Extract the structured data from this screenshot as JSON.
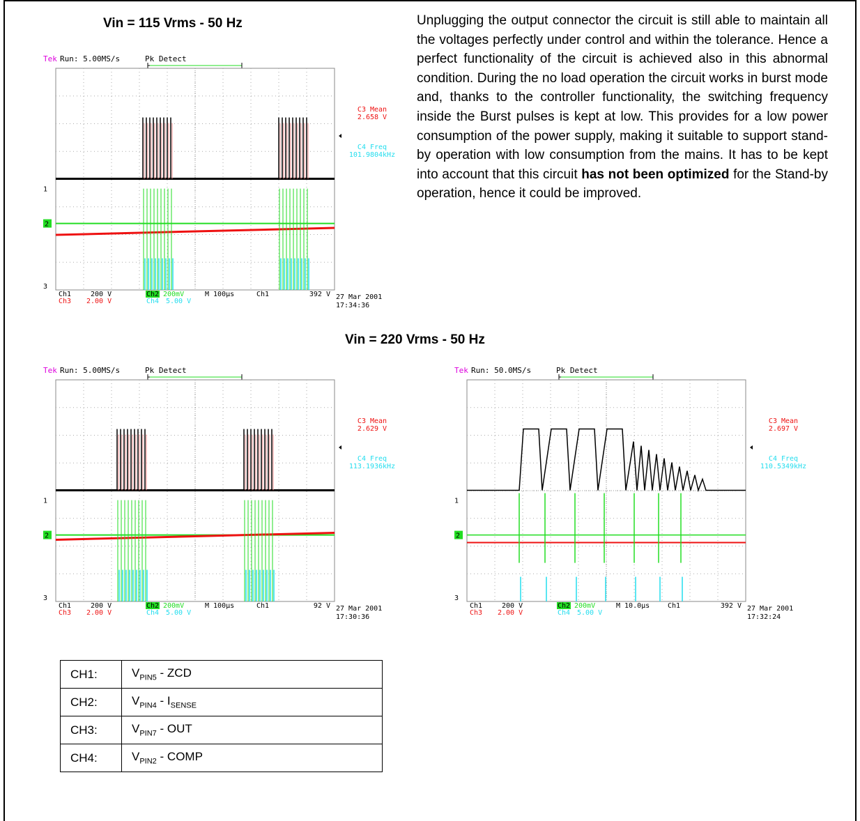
{
  "titles": {
    "top": "Vin = 115 Vrms - 50 Hz",
    "bottom": "Vin = 220 Vrms - 50 Hz"
  },
  "paragraph": {
    "part1": "Unplugging the output connector the circuit is still able to maintain all the voltages perfectly under control and within the tolerance. Hence a perfect functionality of the circuit is achieved also in this abnormal condition. During the no load operation the circuit works in burst mode and, thanks to the controller functionality, the switching frequency inside the Burst pulses is kept at low. This provides for a low power consumption of the power supply, making it suitable to support stand-by operation with low consumption from the mains. It has to be kept into account that this circuit ",
    "bold": "has not been optimized",
    "part2": " for the Stand-by operation, hence it could be improved."
  },
  "scopes": [
    {
      "brand": "Tek",
      "run": "Run: 5.00MS/s",
      "mode": "Pk Detect",
      "m1_label": "C3 Mean",
      "m1_value": "2.658 V",
      "m2_label": "C4 Freq",
      "m2_value": "101.9804kHz",
      "ch1": "Ch1",
      "ch1_scale": "200 V",
      "ch2": "Ch2",
      "ch2_scale": "200mV",
      "timebase": "M 100µs",
      "trig_src": "Ch1",
      "trig_level": "392 V",
      "ch3": "Ch3",
      "ch3_scale": "2.00 V",
      "ch4": "Ch4",
      "ch4_scale": "5.00 V",
      "date": "27 Mar 2001",
      "time": "17:34:36",
      "marker1": "1",
      "marker2": "2",
      "marker3": "3"
    },
    {
      "brand": "Tek",
      "run": "Run: 5.00MS/s",
      "mode": "Pk Detect",
      "m1_label": "C3 Mean",
      "m1_value": "2.629 V",
      "m2_label": "C4 Freq",
      "m2_value": "113.1936kHz",
      "ch1": "Ch1",
      "ch1_scale": "200 V",
      "ch2": "Ch2",
      "ch2_scale": "200mV",
      "timebase": "M 100µs",
      "trig_src": "Ch1",
      "trig_level": "92 V",
      "ch3": "Ch3",
      "ch3_scale": "2.00 V",
      "ch4": "Ch4",
      "ch4_scale": "5.00 V",
      "date": "27 Mar 2001",
      "time": "17:30:36",
      "marker1": "1",
      "marker2": "2",
      "marker3": "3"
    },
    {
      "brand": "Tek",
      "run": "Run: 50.0MS/s",
      "mode": "Pk Detect",
      "m1_label": "C3 Mean",
      "m1_value": "2.697 V",
      "m2_label": "C4 Freq",
      "m2_value": "110.5349kHz",
      "ch1": "Ch1",
      "ch1_scale": "200 V",
      "ch2": "Ch2",
      "ch2_scale": "200mV",
      "timebase": "M 10.0µs",
      "trig_src": "Ch1",
      "trig_level": "392 V",
      "ch3": "Ch3",
      "ch3_scale": "2.00 V",
      "ch4": "Ch4",
      "ch4_scale": "5.00 V",
      "date": "27 Mar 2001",
      "time": "17:32:24",
      "marker1": "1",
      "marker2": "2",
      "marker3": "3"
    }
  ],
  "legend": [
    {
      "ch": "CH1:",
      "v": "V",
      "pin": "PIN5",
      "rest": " - ZCD",
      "sub2": ""
    },
    {
      "ch": "CH2:",
      "v": "V",
      "pin": "PIN4",
      "rest": " - I",
      "sub2": "SENSE"
    },
    {
      "ch": "CH3:",
      "v": "V",
      "pin": "PIN7",
      "rest": " - OUT",
      "sub2": ""
    },
    {
      "ch": "CH4:",
      "v": "V",
      "pin": "PIN2",
      "rest": " - COMP",
      "sub2": ""
    }
  ],
  "colors": {
    "ch1": "#000000",
    "ch2": "#22dd22",
    "ch3": "#ee1111",
    "ch4": "#22ddee",
    "brand": "#dd00dd"
  }
}
